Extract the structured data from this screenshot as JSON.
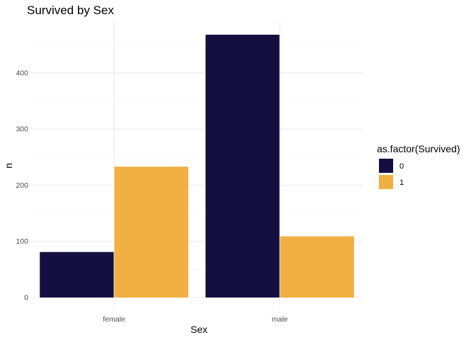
{
  "chart_data": {
    "type": "bar",
    "title": "Survived by Sex",
    "xlabel": "Sex",
    "ylabel": "n",
    "categories": [
      "female",
      "male"
    ],
    "series": [
      {
        "name": "0",
        "values": [
          81,
          468
        ],
        "color": "#140f40"
      },
      {
        "name": "1",
        "values": [
          233,
          109
        ],
        "color": "#f0b042"
      }
    ],
    "ylim": [
      0,
      468
    ],
    "yticks": [
      0,
      100,
      200,
      300,
      400
    ],
    "grid": true,
    "legend": {
      "title": "as.factor(Survived)",
      "position": "right"
    }
  }
}
